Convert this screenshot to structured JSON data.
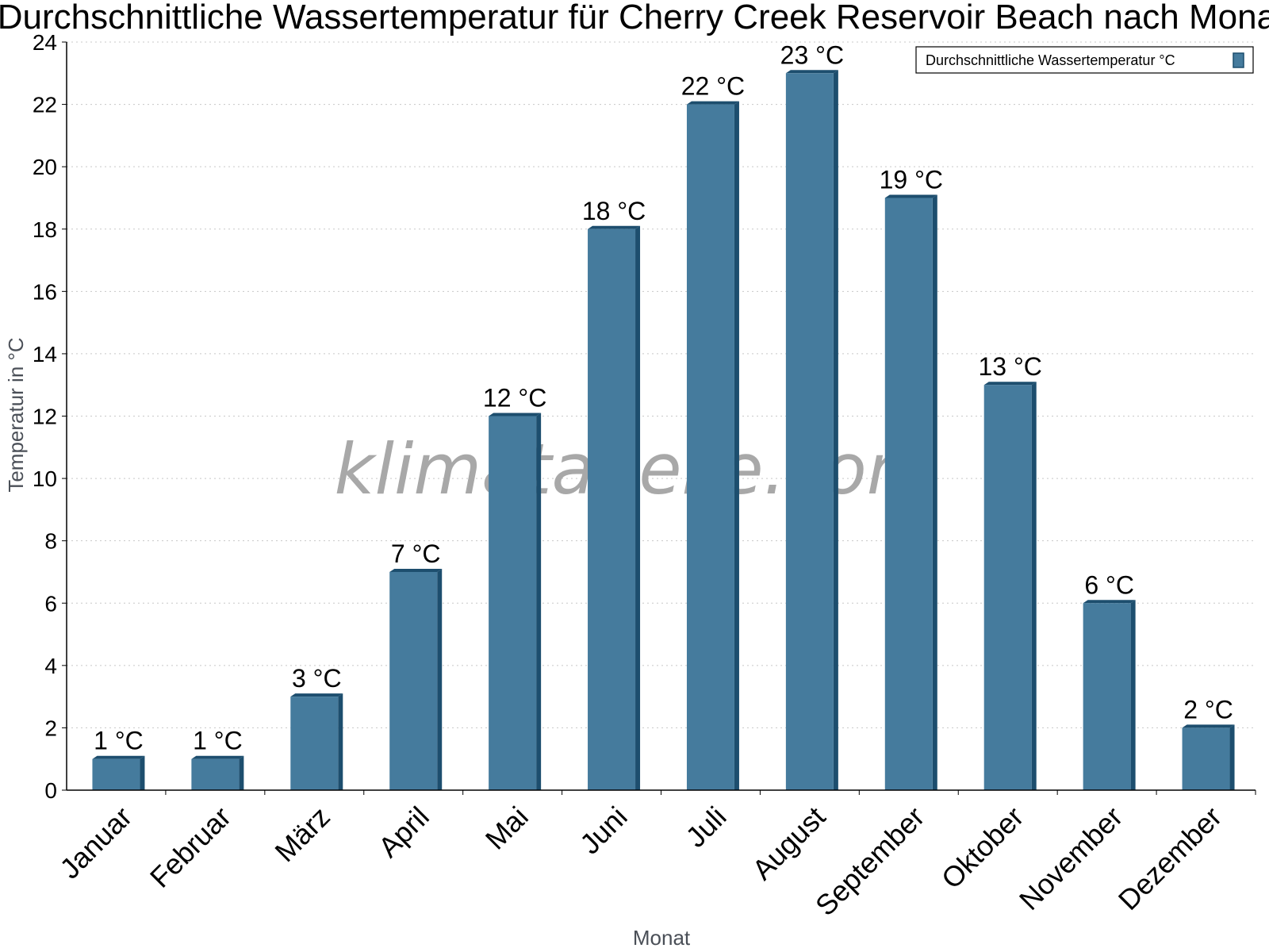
{
  "chart_data": {
    "type": "bar",
    "title": "Durchschnittliche Wassertemperatur für Cherry Creek Reservoir Beach nach Monat",
    "xlabel": "Monat",
    "ylabel": "Temperatur in °C",
    "categories": [
      "Januar",
      "Februar",
      "März",
      "April",
      "Mai",
      "Juni",
      "Juli",
      "August",
      "September",
      "Oktober",
      "November",
      "Dezember"
    ],
    "series": [
      {
        "name": "Durchschnittliche Wassertemperatur °C",
        "values": [
          1,
          1,
          3,
          7,
          12,
          18,
          22,
          23,
          19,
          13,
          6,
          2
        ],
        "labels": [
          "1 °C",
          "1 °C",
          "3 °C",
          "7 °C",
          "12 °C",
          "18 °C",
          "22 °C",
          "23 °C",
          "19 °C",
          "13 °C",
          "6 °C",
          "2 °C"
        ],
        "color": "#457b9d",
        "edge_color": "#1d4e6e"
      }
    ],
    "ylim": [
      0,
      24
    ],
    "yticks": [
      "0",
      "2",
      "4",
      "6",
      "8",
      "10",
      "12",
      "14",
      "16",
      "18",
      "20",
      "22",
      "24"
    ],
    "grid": true,
    "legend_position": "top-right",
    "watermark": "klimatabelle.com"
  }
}
